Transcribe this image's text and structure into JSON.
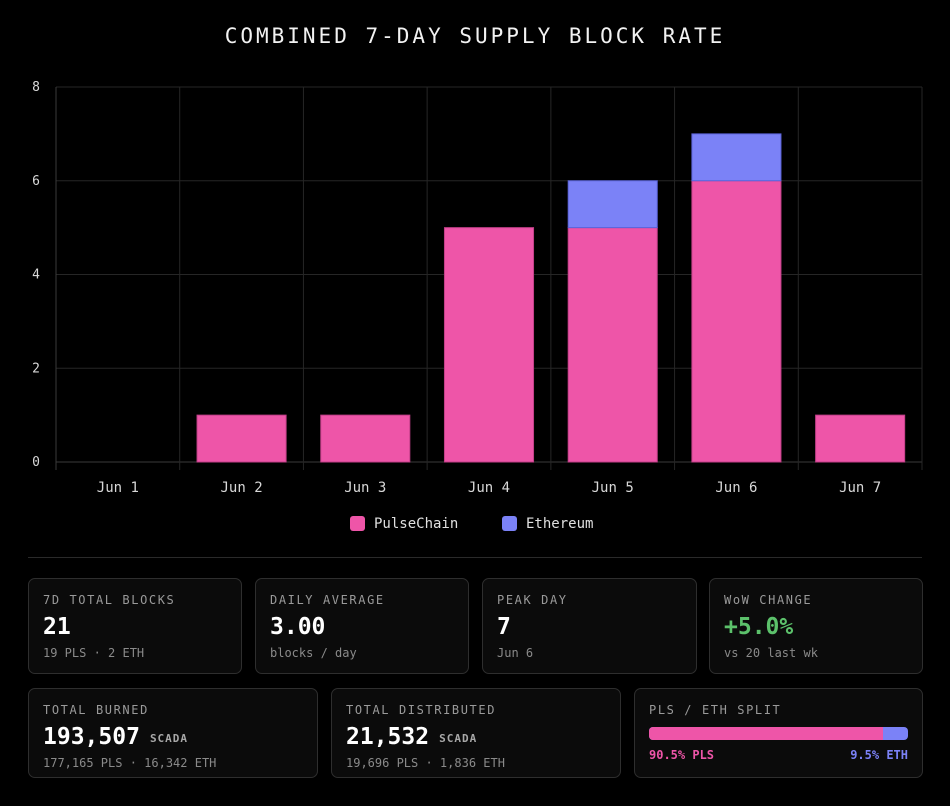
{
  "chart_data": {
    "type": "bar",
    "stacked": true,
    "title": "COMBINED 7-DAY SUPPLY BLOCK RATE",
    "categories": [
      "Jun 1",
      "Jun 2",
      "Jun 3",
      "Jun 4",
      "Jun 5",
      "Jun 6",
      "Jun 7"
    ],
    "series": [
      {
        "name": "PulseChain",
        "color": "#ee55a8",
        "values": [
          0,
          1,
          1,
          5,
          5,
          6,
          1
        ]
      },
      {
        "name": "Ethereum",
        "color": "#7b82f7",
        "values": [
          0,
          0,
          0,
          0,
          1,
          1,
          0
        ]
      }
    ],
    "ylim": [
      0,
      8
    ],
    "yticks": [
      0,
      2,
      4,
      6,
      8
    ],
    "grid": true,
    "legend": "bottom"
  },
  "stats": {
    "total_blocks": {
      "label": "7D TOTAL BLOCKS",
      "value": "21",
      "sub": "19 PLS · 2 ETH"
    },
    "daily_average": {
      "label": "DAILY AVERAGE",
      "value": "3.00",
      "sub": "blocks / day"
    },
    "peak_day": {
      "label": "PEAK DAY",
      "value": "7",
      "sub": "Jun 6"
    },
    "wow_change": {
      "label": "WoW CHANGE",
      "value": "+5.0%",
      "sub": "vs 20 last wk",
      "color": "#5cc16b"
    },
    "total_burned": {
      "label": "TOTAL BURNED",
      "value": "193,507",
      "unit": "SCADA",
      "sub": "177,165 PLS · 16,342 ETH"
    },
    "total_distributed": {
      "label": "TOTAL DISTRIBUTED",
      "value": "21,532",
      "unit": "SCADA",
      "sub": "19,696 PLS · 1,836 ETH"
    },
    "split": {
      "label": "PLS / ETH SPLIT",
      "pls_fraction": 0.905,
      "pls_label": "90.5% PLS",
      "eth_label": "9.5% ETH"
    }
  }
}
